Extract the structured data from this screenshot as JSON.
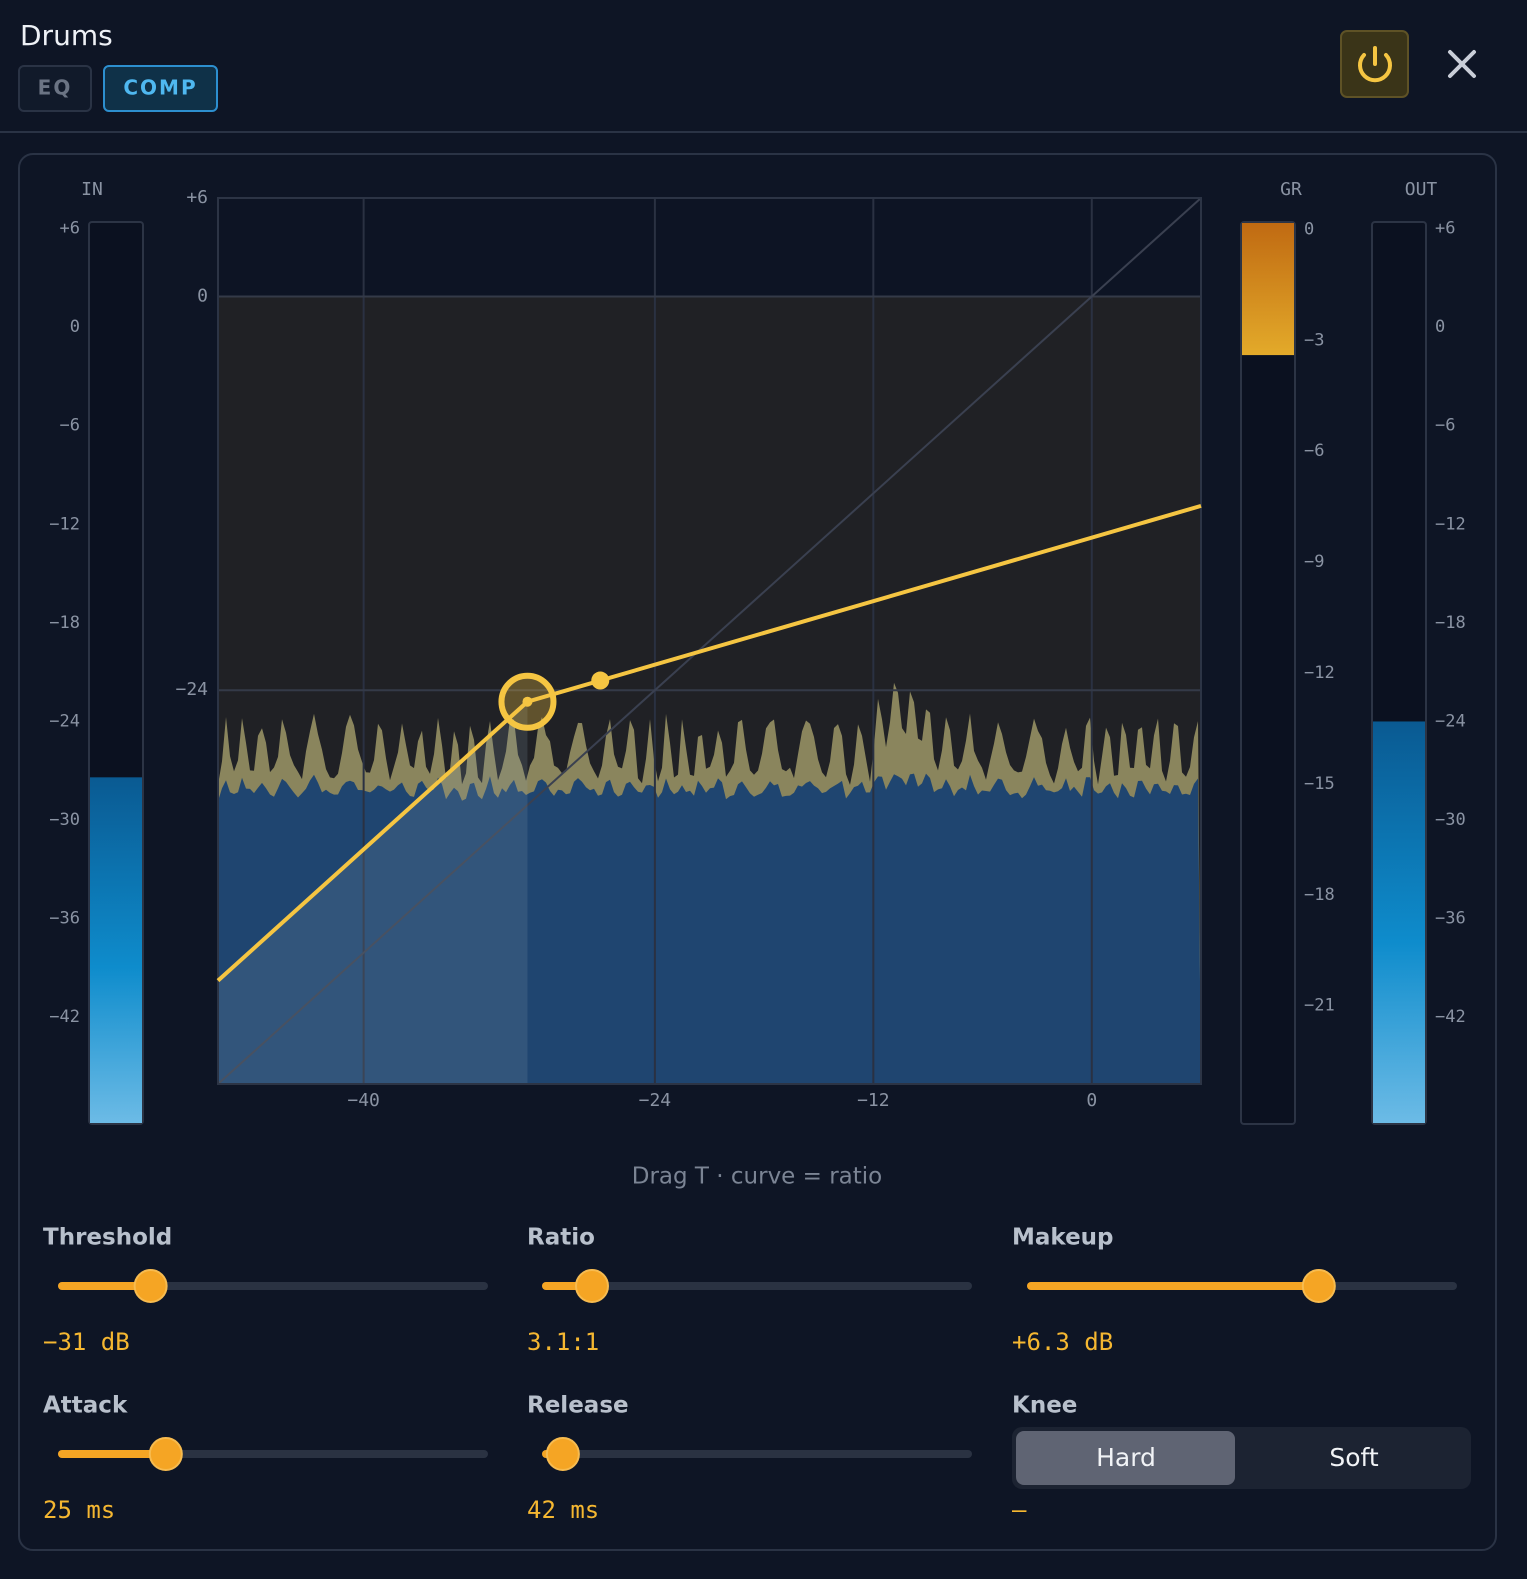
{
  "header": {
    "title": "Drums",
    "tabs": [
      "EQ",
      "COMP"
    ],
    "active_tab": 1
  },
  "graph": {
    "xlim": [
      -48,
      6
    ],
    "ylim": [
      -48,
      6
    ],
    "xticks": [
      {
        "value": -40,
        "label": "−40"
      },
      {
        "value": -24,
        "label": "−24"
      },
      {
        "value": -12,
        "label": "−12"
      },
      0
    ],
    "yticks": [
      {
        "value": 6,
        "label": "+6"
      },
      0,
      {
        "value": -24,
        "label": "−24"
      }
    ],
    "threshold": -31,
    "ratio": 3.1,
    "makeup": 6.3
  },
  "meters": {
    "in": {
      "label": "IN",
      "ylim": [
        -48.5,
        6.4
      ],
      "level": -27.4,
      "ticks": [
        {
          "value": 6,
          "label": "+6"
        },
        0,
        {
          "value": -6,
          "label": "−6"
        },
        {
          "value": -12,
          "label": "−12"
        },
        {
          "value": -18,
          "label": "−18"
        },
        {
          "value": -24,
          "label": "−24"
        },
        {
          "value": -30,
          "label": "−30"
        },
        {
          "value": -36,
          "label": "−36"
        },
        {
          "value": -42,
          "label": "−42"
        }
      ]
    },
    "gr": {
      "label": "GR",
      "ylim": [
        -24.2,
        0.2
      ],
      "level": -3.4,
      "ticks": [
        0,
        {
          "value": -3,
          "label": "−3"
        },
        {
          "value": -6,
          "label": "−6"
        },
        {
          "value": -9,
          "label": "−9"
        },
        {
          "value": -12,
          "label": "−12"
        },
        {
          "value": -15,
          "label": "−15"
        },
        {
          "value": -18,
          "label": "−18"
        },
        {
          "value": -21,
          "label": "−21"
        }
      ]
    },
    "out": {
      "label": "OUT",
      "ylim": [
        -48.5,
        6.4
      ],
      "level": -24,
      "ticks": [
        {
          "value": 6,
          "label": "+6"
        },
        0,
        {
          "value": -6,
          "label": "−6"
        },
        {
          "value": -12,
          "label": "−12"
        },
        {
          "value": -18,
          "label": "−18"
        },
        {
          "value": -24,
          "label": "−24"
        },
        {
          "value": -30,
          "label": "−30"
        },
        {
          "value": -36,
          "label": "−36"
        },
        {
          "value": -42,
          "label": "−42"
        }
      ]
    }
  },
  "hint": "Drag T · curve = ratio",
  "controls": [
    {
      "label": "Threshold",
      "value": "−31 dB"
    },
    {
      "label": "Ratio",
      "value": "3.1:1"
    },
    {
      "label": "Makeup",
      "value": "+6.3 dB"
    },
    {
      "label": "Attack",
      "value": "25 ms"
    },
    {
      "label": "Release",
      "value": "42 ms"
    }
  ],
  "knee": {
    "label": "Knee",
    "options": [
      "Hard",
      "Soft"
    ],
    "selected": 0,
    "value": "—"
  }
}
